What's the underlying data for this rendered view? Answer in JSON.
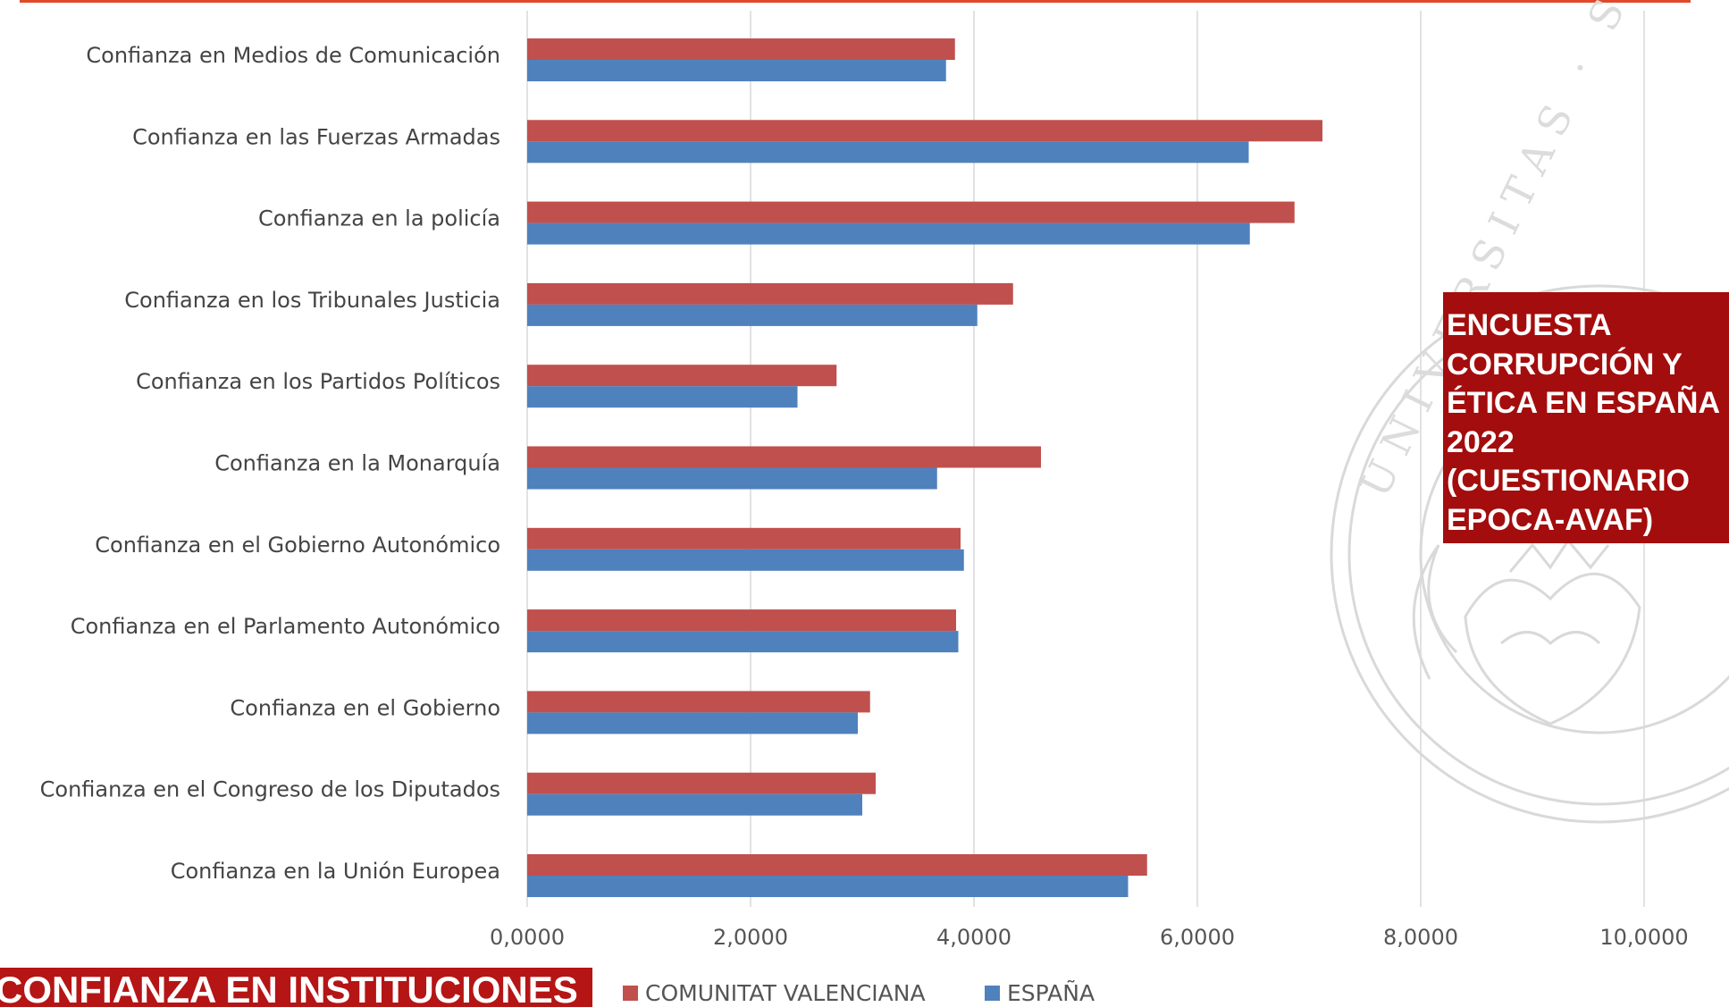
{
  "chart_data": {
    "type": "bar",
    "orientation": "horizontal",
    "categories": [
      "Confianza en Medios de Comunicación",
      "Confianza en las Fuerzas Armadas",
      "Confianza en la policía",
      "Confianza en los Tribunales Justicia",
      "Confianza en los Partidos Políticos",
      "Confianza en la Monarquía",
      "Confianza en el Gobierno Autonómico",
      "Confianza en el Parlamento Autonómico",
      "Confianza en el Gobierno",
      "Confianza en el Congreso de los Diputados",
      "Confianza en la Unión Europea"
    ],
    "series": [
      {
        "name": "COMUNITAT VALENCIANA",
        "color": "#c0504d",
        "values": [
          3.83,
          7.12,
          6.87,
          4.35,
          2.77,
          4.6,
          3.88,
          3.84,
          3.07,
          3.12,
          5.55
        ]
      },
      {
        "name": "ESPAÑA",
        "color": "#4f81bd",
        "values": [
          3.75,
          6.46,
          6.47,
          4.03,
          2.42,
          3.67,
          3.91,
          3.86,
          2.96,
          3.0,
          5.38
        ]
      }
    ],
    "xlim": [
      0,
      10
    ],
    "xticks": [
      0,
      2,
      4,
      6,
      8,
      10
    ],
    "xtick_labels": [
      "0,0000",
      "2,0000",
      "4,0000",
      "6,0000",
      "8,0000",
      "10,0000"
    ],
    "grid": "vertical",
    "legend": "bottom"
  },
  "survey_box": {
    "text": "ENCUESTA\nCORRUPCIÓN Y\nÉTICA EN ESPAÑA\n2022\n(CUESTIONARIO\nEPOCA-AVAF)"
  },
  "section_title": "CONFIANZA EN INSTITUCIONES",
  "seal_text": "UNIVERSITAS · STUDII · VALENTINI · ANNO"
}
